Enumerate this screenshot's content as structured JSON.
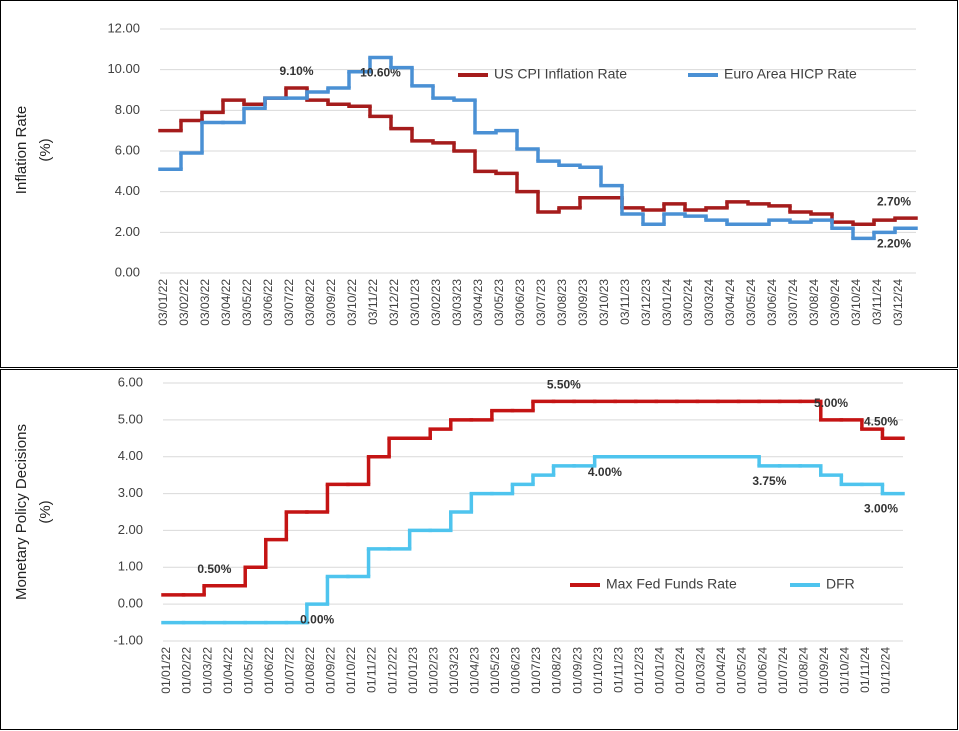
{
  "chart_data": [
    {
      "type": "step-line",
      "ylabel": [
        "Inflation Rate",
        "(%)"
      ],
      "categories": [
        "03/01/22",
        "03/02/22",
        "03/03/22",
        "03/04/22",
        "03/05/22",
        "03/06/22",
        "03/07/22",
        "03/08/22",
        "03/09/22",
        "03/10/22",
        "03/11/22",
        "03/12/22",
        "03/01/23",
        "03/02/23",
        "03/03/23",
        "03/04/23",
        "03/05/23",
        "03/06/23",
        "03/07/23",
        "03/08/23",
        "03/09/23",
        "03/10/23",
        "03/11/23",
        "03/12/23",
        "03/01/24",
        "03/02/24",
        "03/03/24",
        "03/04/24",
        "03/05/24",
        "03/06/24",
        "03/07/24",
        "03/08/24",
        "03/09/24",
        "03/10/24",
        "03/11/24",
        "03/12/24"
      ],
      "series": [
        {
          "name": "US CPI Inflation Rate",
          "color": "#a51c1c",
          "values": [
            7.0,
            7.5,
            7.9,
            8.5,
            8.3,
            8.6,
            9.1,
            8.5,
            8.3,
            8.2,
            7.7,
            7.1,
            6.5,
            6.4,
            6.0,
            5.0,
            4.9,
            4.0,
            3.0,
            3.2,
            3.7,
            3.7,
            3.2,
            3.1,
            3.4,
            3.1,
            3.2,
            3.5,
            3.4,
            3.3,
            3.0,
            2.9,
            2.5,
            2.4,
            2.6,
            2.7
          ],
          "value_labels": [
            null,
            null,
            null,
            null,
            null,
            null,
            "9.10%",
            null,
            null,
            null,
            null,
            null,
            null,
            null,
            null,
            null,
            null,
            null,
            null,
            null,
            null,
            null,
            null,
            null,
            null,
            null,
            null,
            null,
            null,
            null,
            null,
            null,
            null,
            null,
            null,
            "2.70%"
          ]
        },
        {
          "name": "Euro Area HICP Rate",
          "color": "#4a90d4",
          "values": [
            5.1,
            5.9,
            7.4,
            7.4,
            8.1,
            8.6,
            8.6,
            8.9,
            9.1,
            9.9,
            10.6,
            10.1,
            9.2,
            8.6,
            8.5,
            6.9,
            7.0,
            6.1,
            5.5,
            5.3,
            5.2,
            4.3,
            2.9,
            2.4,
            2.9,
            2.8,
            2.6,
            2.4,
            2.4,
            2.6,
            2.5,
            2.6,
            2.2,
            1.7,
            2.0,
            2.2
          ],
          "value_labels": [
            null,
            null,
            null,
            null,
            null,
            null,
            null,
            null,
            null,
            null,
            "10.60%",
            null,
            null,
            null,
            null,
            null,
            null,
            null,
            null,
            null,
            null,
            null,
            null,
            null,
            null,
            null,
            null,
            null,
            null,
            null,
            null,
            null,
            null,
            null,
            null,
            "2.20%"
          ]
        }
      ],
      "ylim": [
        0,
        12
      ],
      "yticks": [
        {
          "value": 0,
          "label": "0.00"
        },
        {
          "value": 2,
          "label": "2.00"
        },
        {
          "value": 4,
          "label": "4.00"
        },
        {
          "value": 6,
          "label": "6.00"
        },
        {
          "value": 8,
          "label": "8.00"
        },
        {
          "value": 10,
          "label": "10.00"
        },
        {
          "value": 12,
          "label": "12.00"
        }
      ],
      "grid": true,
      "legend": "top-right"
    },
    {
      "type": "step-line",
      "ylabel": [
        "Monetary Policy Decisions",
        "(%)"
      ],
      "categories": [
        "01/01/22",
        "01/02/22",
        "01/03/22",
        "01/04/22",
        "01/05/22",
        "01/06/22",
        "01/07/22",
        "01/08/22",
        "01/09/22",
        "01/10/22",
        "01/11/22",
        "01/12/22",
        "01/01/23",
        "01/02/23",
        "01/03/23",
        "01/04/23",
        "01/05/23",
        "01/06/23",
        "01/07/23",
        "01/08/23",
        "01/09/23",
        "01/10/23",
        "01/11/23",
        "01/12/23",
        "01/01/24",
        "01/02/24",
        "01/03/24",
        "01/04/24",
        "01/05/24",
        "01/06/24",
        "01/07/24",
        "01/08/24",
        "01/09/24",
        "01/10/24",
        "01/11/24",
        "01/12/24"
      ],
      "series": [
        {
          "name": "Max Fed Funds Rate",
          "color": "#c41414",
          "values": [
            0.25,
            0.25,
            0.5,
            0.5,
            1.0,
            1.75,
            2.5,
            2.5,
            3.25,
            3.25,
            4.0,
            4.5,
            4.5,
            4.75,
            5.0,
            5.0,
            5.25,
            5.25,
            5.5,
            5.5,
            5.5,
            5.5,
            5.5,
            5.5,
            5.5,
            5.5,
            5.5,
            5.5,
            5.5,
            5.5,
            5.5,
            5.5,
            5.0,
            5.0,
            4.75,
            4.5
          ],
          "value_labels": [
            null,
            null,
            "0.50%",
            null,
            null,
            null,
            null,
            null,
            null,
            null,
            null,
            null,
            null,
            null,
            null,
            null,
            null,
            null,
            null,
            "5.50%",
            null,
            null,
            null,
            null,
            null,
            null,
            null,
            null,
            null,
            null,
            null,
            null,
            "5.00%",
            null,
            null,
            "4.50%"
          ]
        },
        {
          "name": "DFR",
          "color": "#4ec4ee",
          "values": [
            -0.5,
            -0.5,
            -0.5,
            -0.5,
            -0.5,
            -0.5,
            -0.5,
            0.0,
            0.75,
            0.75,
            1.5,
            1.5,
            2.0,
            2.0,
            2.5,
            3.0,
            3.0,
            3.25,
            3.5,
            3.75,
            3.75,
            4.0,
            4.0,
            4.0,
            4.0,
            4.0,
            4.0,
            4.0,
            4.0,
            3.75,
            3.75,
            3.75,
            3.5,
            3.25,
            3.25,
            3.0
          ],
          "value_labels": [
            null,
            null,
            null,
            null,
            null,
            null,
            null,
            "0.00%",
            null,
            null,
            null,
            null,
            null,
            null,
            null,
            null,
            null,
            null,
            null,
            null,
            null,
            "4.00%",
            null,
            null,
            null,
            null,
            null,
            null,
            null,
            "3.75%",
            null,
            null,
            null,
            null,
            null,
            "3.00%"
          ]
        }
      ],
      "ylim": [
        -1,
        6
      ],
      "yticks": [
        {
          "value": -1,
          "label": "-1.00"
        },
        {
          "value": 0,
          "label": "0.00"
        },
        {
          "value": 1,
          "label": "1.00"
        },
        {
          "value": 2,
          "label": "2.00"
        },
        {
          "value": 3,
          "label": "3.00"
        },
        {
          "value": 4,
          "label": "4.00"
        },
        {
          "value": 5,
          "label": "5.00"
        },
        {
          "value": 6,
          "label": "6.00"
        }
      ],
      "grid": true,
      "legend": "bottom-right"
    }
  ]
}
